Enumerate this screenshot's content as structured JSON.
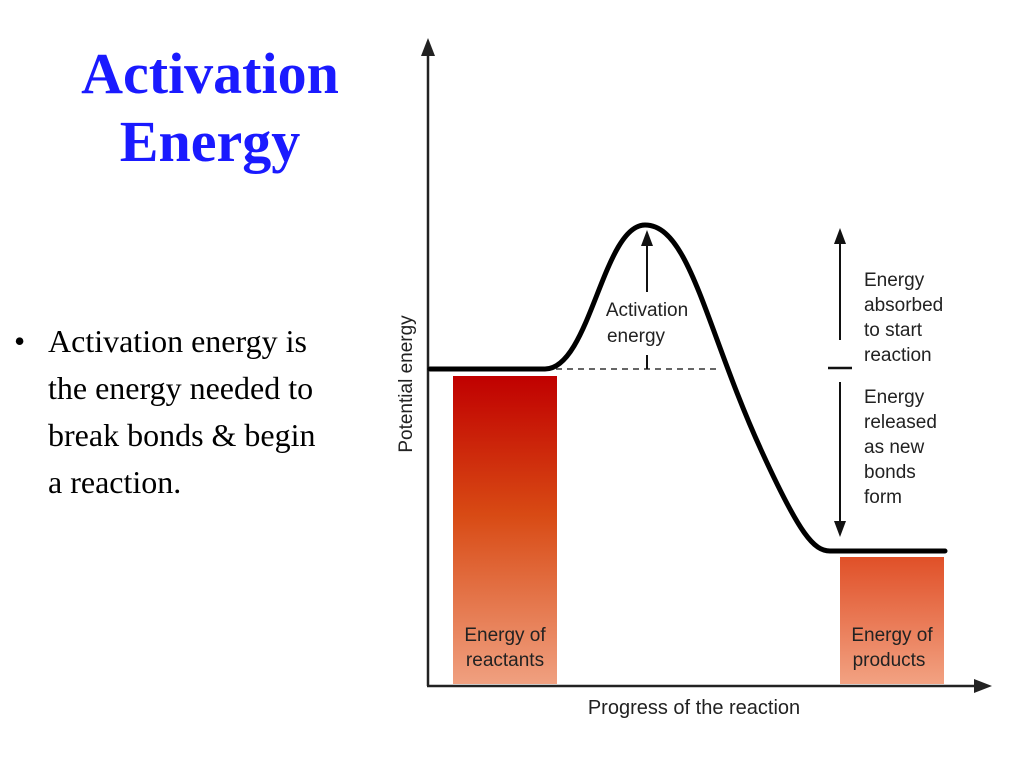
{
  "title": {
    "line1": "Activation",
    "line2": "Energy"
  },
  "bullets": [
    {
      "marker": "•",
      "lines": [
        "Activation energy is",
        "the energy needed to",
        "break bonds & begin",
        "a reaction."
      ]
    }
  ],
  "diagram": {
    "y_axis_label": "Potential energy",
    "x_axis_label": "Progress of the reaction",
    "peak_label": [
      "Activation",
      "energy"
    ],
    "absorbed_label": [
      "Energy",
      "absorbed",
      "to start",
      "reaction"
    ],
    "released_label": [
      "Energy",
      "released",
      "as new",
      "bonds",
      "form"
    ],
    "reactants_label": [
      "Energy of",
      "reactants"
    ],
    "products_label": [
      "Energy of",
      "products"
    ],
    "colors": {
      "curve": "#000000",
      "reactants_top": "#c00000",
      "reactants_mid": "#d84a14",
      "reactants_bottom": "#f0a080",
      "products_top": "#e05028",
      "products_bottom": "#f2a282",
      "title": "#1a1aff"
    }
  }
}
